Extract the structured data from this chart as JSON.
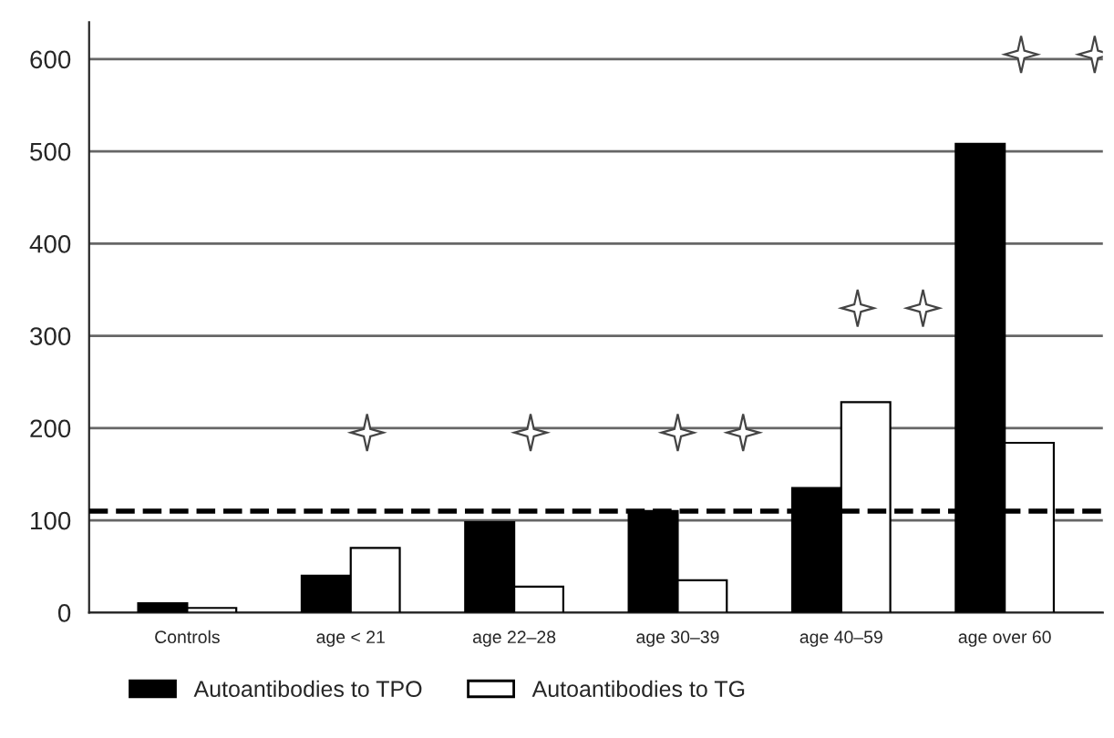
{
  "chart_data": {
    "type": "bar",
    "categories": [
      "Controls",
      "age < 21",
      "age 22–28",
      "age 30–39",
      "age 40–59",
      "age over 60"
    ],
    "series": [
      {
        "name": "Autoantibodies to TPO",
        "color": "#000000",
        "values": [
          10,
          40,
          98,
          110,
          135,
          508
        ]
      },
      {
        "name": "Autoantibodies to TG",
        "color": "#ffffff",
        "values": [
          5,
          70,
          28,
          35,
          228,
          184
        ]
      }
    ],
    "ylim": [
      0,
      640
    ],
    "yticks": [
      0,
      100,
      200,
      300,
      400,
      500,
      600
    ],
    "grid": "y",
    "legend": "bottom",
    "ref_lines": [
      {
        "axis": "y",
        "value": 110,
        "line_style": "dashed",
        "color": "#000000"
      }
    ]
  }
}
